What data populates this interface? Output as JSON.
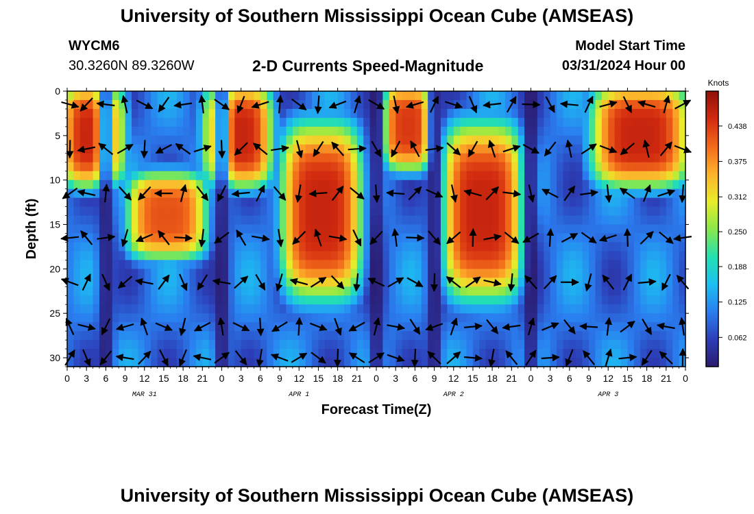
{
  "header": {
    "title": "University of Southern Mississippi Ocean Cube (AMSEAS)",
    "station_id": "WYCM6",
    "station_coords": "30.3260N  89.3260W",
    "plot_title": "2-D Currents Speed-Magnitude",
    "model_start_label": "Model Start Time",
    "model_start_time": "03/31/2024 Hour 00"
  },
  "footer": {
    "title": "University of Southern Mississippi Ocean Cube (AMSEAS)"
  },
  "chart_data": {
    "type": "heatmap",
    "title": "2-D Currents Speed-Magnitude",
    "xlabel": "Forecast Time(Z)",
    "ylabel": "Depth (ft)",
    "x_tick_labels": [
      "0",
      "3",
      "6",
      "9",
      "12",
      "15",
      "18",
      "21",
      "0",
      "3",
      "6",
      "9",
      "12",
      "15",
      "18",
      "21",
      "0",
      "3",
      "6",
      "9",
      "12",
      "15",
      "18",
      "21",
      "0",
      "3",
      "6",
      "9",
      "12",
      "15",
      "18",
      "21",
      "0"
    ],
    "day_labels": [
      {
        "hour": 12,
        "label": "MAR 31"
      },
      {
        "hour": 36,
        "label": "APR 1"
      },
      {
        "hour": 60,
        "label": "APR 2"
      },
      {
        "hour": 84,
        "label": "APR 3"
      }
    ],
    "xlim_hours": [
      0,
      96
    ],
    "y_ticks": [
      0,
      5,
      10,
      15,
      20,
      25,
      30
    ],
    "ylim": [
      0,
      31
    ],
    "y_inverted": true,
    "colorbar": {
      "unit": "Knots",
      "range": [
        0.01,
        0.5
      ],
      "tick_labels": [
        "0.438",
        "0.375",
        "0.312",
        "0.250",
        "0.188",
        "0.125",
        "0.062"
      ],
      "tick_values": [
        0.438,
        0.375,
        0.312,
        0.25,
        0.188,
        0.125,
        0.062
      ],
      "colormap": [
        "#2b1b6e",
        "#2c3fb8",
        "#2a7ff0",
        "#1cc0f0",
        "#24e0b0",
        "#8ae84a",
        "#e8ec2a",
        "#fdb22c",
        "#f26a1a",
        "#d22a10",
        "#8f1208"
      ]
    },
    "current_arrows_depths_ft": [
      1.5,
      6.5,
      11.5,
      16.5,
      21.5,
      26.5,
      30
    ],
    "current_arrows_hours": [
      0,
      3,
      6,
      9,
      12,
      15,
      18,
      21,
      24,
      27,
      30,
      33,
      36,
      39,
      42,
      45,
      48,
      51,
      54,
      57,
      60,
      63,
      66,
      69,
      72,
      75,
      78,
      81,
      84,
      87,
      90,
      93,
      96
    ],
    "speed_field": {
      "description_values": "approximate current speed in knots per depth band",
      "high_speed_cores": [
        {
          "hours": [
            0,
            8
          ],
          "depth_ft": [
            0,
            10
          ],
          "speed": 0.46
        },
        {
          "hours": [
            10,
            21
          ],
          "depth_ft": [
            10,
            18
          ],
          "speed": 0.42
        },
        {
          "hours": [
            22,
            31
          ],
          "depth_ft": [
            0,
            10
          ],
          "speed": 0.46
        },
        {
          "hours": [
            34,
            45
          ],
          "depth_ft": [
            4,
            23
          ],
          "speed": 0.46
        },
        {
          "hours": [
            50,
            56
          ],
          "depth_ft": [
            0,
            8
          ],
          "speed": 0.44
        },
        {
          "hours": [
            59,
            70
          ],
          "depth_ft": [
            4,
            23
          ],
          "speed": 0.46
        },
        {
          "hours": [
            82,
            96
          ],
          "depth_ft": [
            0,
            10
          ],
          "speed": 0.46
        }
      ]
    }
  }
}
